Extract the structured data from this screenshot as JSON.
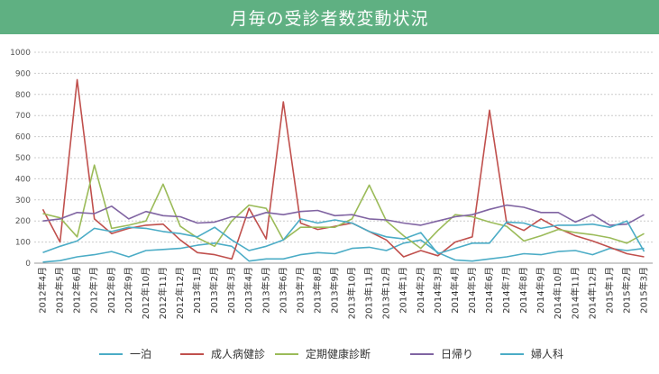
{
  "chart_data": {
    "type": "line",
    "title": "月毎の受診者数変動状況",
    "xlabel": "",
    "ylabel": "",
    "ylim": [
      0,
      1000
    ],
    "yticks": [
      0,
      100,
      200,
      300,
      400,
      500,
      600,
      700,
      800,
      900,
      1000
    ],
    "grid": true,
    "legend_position": "bottom",
    "categories": [
      "2012年4月",
      "2012年5月",
      "2012年6月",
      "2012年7月",
      "2012年8月",
      "2012年9月",
      "2012年10月",
      "2012年11月",
      "2012年12月",
      "2013年1月",
      "2013年2月",
      "2013年3月",
      "2013年4月",
      "2013年5月",
      "2013年6月",
      "2013年7月",
      "2013年8月",
      "2013年9月",
      "2013年10月",
      "2013年11月",
      "2013年12月",
      "2014年1月",
      "2014年2月",
      "2014年3月",
      "2014年4月",
      "2014年5月",
      "2014年6月",
      "2014年7月",
      "2014年8月",
      "2014年9月",
      "2014年10月",
      "2014年11月",
      "2014年12月",
      "2015年1月",
      "2015年2月",
      "2015年3月"
    ],
    "series": [
      {
        "name": "一泊",
        "color": "#4bacc6",
        "values": [
          5,
          12,
          30,
          40,
          55,
          30,
          60,
          65,
          70,
          85,
          95,
          80,
          10,
          20,
          20,
          40,
          50,
          45,
          70,
          75,
          60,
          95,
          110,
          50,
          15,
          10,
          20,
          30,
          45,
          40,
          55,
          60,
          40,
          70,
          60,
          70
        ]
      },
      {
        "name": "成人病健診",
        "color": "#c0504d",
        "values": [
          255,
          100,
          870,
          210,
          140,
          165,
          180,
          185,
          110,
          50,
          40,
          20,
          260,
          115,
          765,
          190,
          160,
          175,
          190,
          150,
          110,
          30,
          60,
          35,
          100,
          125,
          725,
          190,
          155,
          210,
          165,
          130,
          105,
          75,
          45,
          30
        ]
      },
      {
        "name": "定期健康診断",
        "color": "#9bbb59",
        "values": [
          235,
          215,
          125,
          465,
          165,
          180,
          200,
          375,
          175,
          120,
          80,
          200,
          275,
          260,
          110,
          170,
          170,
          170,
          210,
          370,
          200,
          130,
          70,
          155,
          230,
          220,
          195,
          175,
          105,
          130,
          160,
          145,
          135,
          120,
          95,
          140
        ]
      },
      {
        "name": "日帰り",
        "color": "#8064a2",
        "values": [
          200,
          210,
          240,
          235,
          270,
          210,
          245,
          225,
          220,
          190,
          195,
          220,
          215,
          240,
          230,
          245,
          250,
          225,
          230,
          210,
          205,
          190,
          180,
          200,
          220,
          230,
          255,
          275,
          265,
          240,
          240,
          195,
          230,
          180,
          185,
          230
        ]
      },
      {
        "name": "婦人科",
        "color": "#4bacc6",
        "values": [
          50,
          80,
          105,
          165,
          150,
          170,
          165,
          150,
          140,
          125,
          170,
          110,
          60,
          80,
          110,
          210,
          190,
          205,
          190,
          150,
          125,
          115,
          145,
          45,
          70,
          95,
          95,
          195,
          190,
          165,
          180,
          180,
          185,
          170,
          200,
          55
        ]
      }
    ]
  }
}
